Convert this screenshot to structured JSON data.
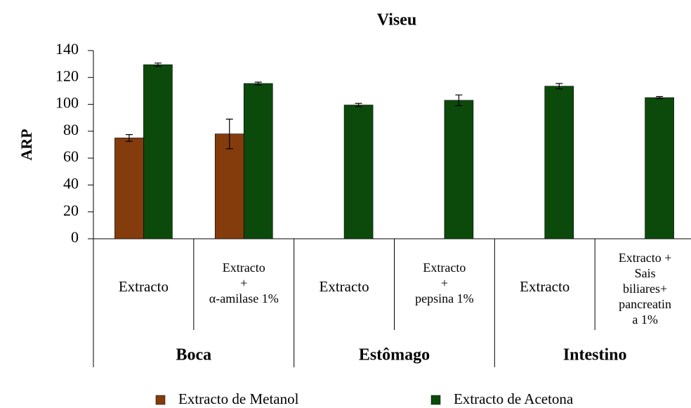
{
  "chart_data": {
    "type": "bar",
    "title": "Viseu",
    "y_label": "ARP",
    "groups": [
      "Boca",
      "Estômago",
      "Intestino"
    ],
    "categories": [
      [
        "Extracto"
      ],
      [
        "Extracto",
        "+",
        "α-amilase 1%"
      ],
      [
        "Extracto"
      ],
      [
        "Extracto",
        "+",
        "pepsina 1%"
      ],
      [
        "Extracto"
      ],
      [
        "Extracto +",
        "Sais",
        "biliares+",
        "pancreatin",
        "a 1%"
      ]
    ],
    "series": [
      {
        "name": "Extracto de Metanol",
        "color": "#843c0c",
        "values": [
          75,
          78,
          null,
          null,
          null,
          null
        ],
        "errors": [
          2.5,
          11,
          null,
          null,
          null,
          null
        ]
      },
      {
        "name": "Extracto de Acetona",
        "color": "#0b4a0b",
        "values": [
          129.5,
          115.5,
          99.5,
          103,
          113.5,
          105
        ],
        "errors": [
          1.2,
          1,
          1.2,
          4,
          2,
          0.8
        ]
      }
    ],
    "ylim": [
      0,
      140
    ],
    "yticks": [
      0,
      20,
      40,
      60,
      80,
      100,
      120,
      140
    ],
    "grid": false,
    "legend": "bottom"
  }
}
